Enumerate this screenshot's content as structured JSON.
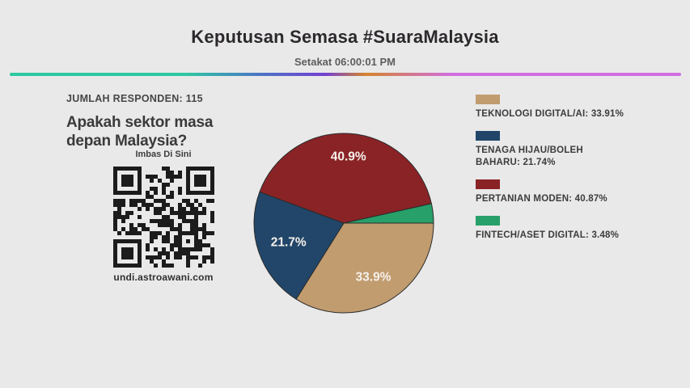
{
  "header": {
    "title": "Keputusan Semasa #SuaraMalaysia",
    "subtitle": "Setakat 06:00:01 PM"
  },
  "poll": {
    "respondents_label": "JUMLAH RESPONDEN: 115",
    "question": "Apakah sektor masa depan Malaysia?",
    "qr": {
      "caption": "Imbas Di Sini",
      "url": "undi.astroawani.com"
    }
  },
  "chart_data": {
    "type": "pie",
    "title": "Apakah sektor masa depan Malaysia?",
    "start_angle_deg": 0,
    "direction": "clockwise",
    "legend_position": "right",
    "slices": [
      {
        "name": "TEKNOLOGI DIGITAL/AI",
        "pct": 33.91,
        "color": "#c19c6f",
        "pie_label": "33.9%",
        "label_r": 0.68
      },
      {
        "name": "TENAGA HIJAU/BOLEH BAHARU",
        "pct": 21.74,
        "color": "#214669",
        "pie_label": "21.7%",
        "label_r": 0.65
      },
      {
        "name": "PERTANIAN MODEN",
        "pct": 40.87,
        "color": "#8a2326",
        "pie_label": "40.9%",
        "label_r": 0.75
      },
      {
        "name": "FINTECH/ASET DIGITAL",
        "pct": 3.48,
        "color": "#27a069",
        "pie_label": "",
        "label_r": 0.6
      }
    ]
  },
  "legend": {
    "items": [
      {
        "label": "TEKNOLOGI DIGITAL/AI: 33.91%"
      },
      {
        "label": "TENAGA HIJAU/BOLEH\nBAHARU: 21.74%"
      },
      {
        "label": "PERTANIAN MODEN: 40.87%"
      },
      {
        "label": "FINTECH/ASET DIGITAL: 3.48%"
      }
    ]
  },
  "theme": {
    "background": "#e9e9e9",
    "gradient": [
      "#2dc9a1",
      "#4b76c6",
      "#7340d2",
      "#d4842f",
      "#d16ee2"
    ],
    "pie_stroke": "#2b2b2b",
    "pie_label_color": "#f6f0ea",
    "qr_module_color": "#1c1c1c"
  }
}
